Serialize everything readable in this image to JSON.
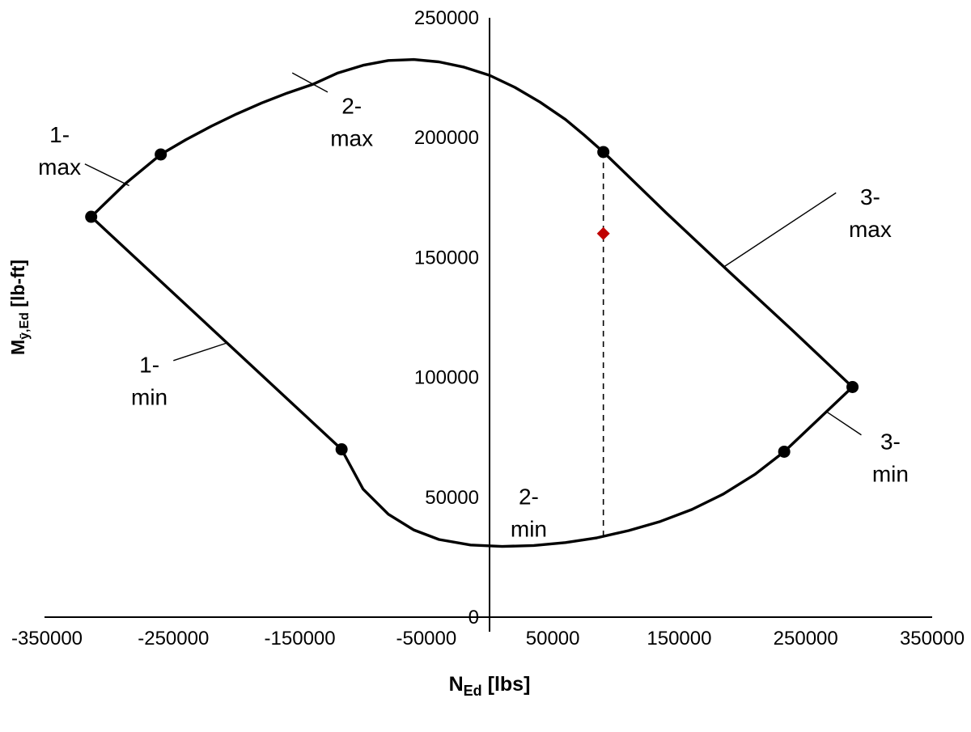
{
  "chart_data": {
    "type": "line",
    "title": "",
    "description": "N-M interaction capacity envelope with labeled boundary sections and one design point",
    "xlabel": {
      "symbol": "N",
      "subscript": "Ed",
      "units": " [lbs]"
    },
    "ylabel": {
      "symbol": "M",
      "subscript": "ȳ,Ed",
      "units": " [lb-ft]"
    },
    "xlim": [
      -350000,
      350000
    ],
    "ylim": [
      0,
      250000
    ],
    "x_ticks": [
      -350000,
      -250000,
      -150000,
      -50000,
      50000,
      150000,
      250000,
      350000
    ],
    "y_ticks": [
      0,
      50000,
      100000,
      150000,
      200000,
      250000
    ],
    "grid": false,
    "legend": false,
    "envelope": [
      [
        -315000,
        167000
      ],
      [
        -288000,
        180800
      ],
      [
        -260000,
        193000
      ],
      [
        -240000,
        199200
      ],
      [
        -220000,
        204800
      ],
      [
        -200000,
        209900
      ],
      [
        -180000,
        214500
      ],
      [
        -160000,
        218600
      ],
      [
        -140000,
        222200
      ],
      [
        -120000,
        227000
      ],
      [
        -100000,
        230200
      ],
      [
        -80000,
        232200
      ],
      [
        -60000,
        232600
      ],
      [
        -40000,
        231600
      ],
      [
        -20000,
        229400
      ],
      [
        0,
        226000
      ],
      [
        20000,
        221000
      ],
      [
        40000,
        214800
      ],
      [
        60000,
        207600
      ],
      [
        75000,
        201000
      ],
      [
        90000,
        194000
      ],
      [
        140000,
        168500
      ],
      [
        190000,
        143800
      ],
      [
        240000,
        119400
      ],
      [
        287000,
        96000
      ],
      [
        233000,
        69000
      ],
      [
        210000,
        59600
      ],
      [
        185000,
        51400
      ],
      [
        160000,
        44900
      ],
      [
        135000,
        39900
      ],
      [
        110000,
        36100
      ],
      [
        85000,
        33100
      ],
      [
        60000,
        31100
      ],
      [
        35000,
        29900
      ],
      [
        10000,
        29500
      ],
      [
        -15000,
        30100
      ],
      [
        -40000,
        32400
      ],
      [
        -60000,
        36400
      ],
      [
        -80000,
        42900
      ],
      [
        -100000,
        53400
      ],
      [
        -117000,
        70000
      ]
    ],
    "boundary_markers": [
      [
        -315000,
        167000
      ],
      [
        -260000,
        193000
      ],
      [
        90000,
        194000
      ],
      [
        287000,
        96000
      ],
      [
        233000,
        69000
      ],
      [
        -117000,
        70000
      ]
    ],
    "design_point": {
      "x": 90000,
      "y": 160000
    },
    "dashed_guide": {
      "x": 90000,
      "y_from": 194000,
      "y_to": 33000
    },
    "annotations": [
      {
        "id": "1-max",
        "line1": "1-",
        "line2": "max",
        "x": -340000,
        "y": 196000,
        "leader": [
          -320000,
          189000,
          -285000,
          180000
        ]
      },
      {
        "id": "1-min",
        "line1": "1-",
        "line2": "min",
        "x": -269000,
        "y": 100000,
        "leader": [
          -250000,
          107000,
          -207000,
          114500
        ]
      },
      {
        "id": "2-max",
        "line1": "2-",
        "line2": "max",
        "x": -109000,
        "y": 208000,
        "leader": [
          -128000,
          219000,
          -156000,
          227000
        ]
      },
      {
        "id": "2-min",
        "line1": "2-",
        "line2": "min",
        "x": 31000,
        "y": 45000,
        "leader": null
      },
      {
        "id": "3-max",
        "line1": "3-",
        "line2": "max",
        "x": 301000,
        "y": 170000,
        "leader": [
          274000,
          177000,
          185000,
          146000
        ]
      },
      {
        "id": "3-min",
        "line1": "3-",
        "line2": "min",
        "x": 317000,
        "y": 68000,
        "leader": [
          294000,
          76000,
          267000,
          85500
        ]
      }
    ],
    "colors": {
      "line": "#000000",
      "marker": "#000000",
      "design_point": "#c00000",
      "background": "#ffffff"
    }
  }
}
